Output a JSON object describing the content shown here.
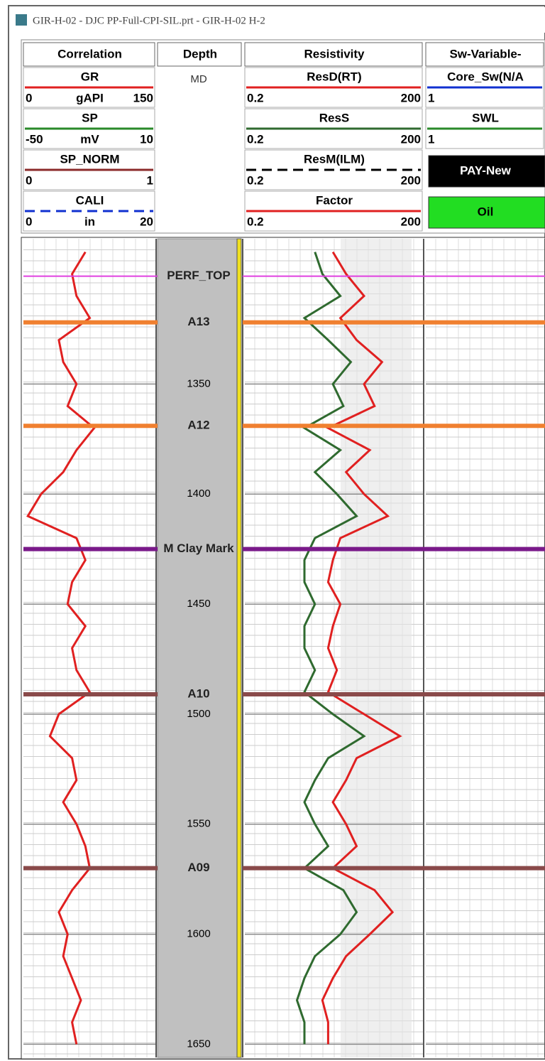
{
  "window": {
    "title": "GIR-H-02 - DJC PP-Full-CPI-SIL.prt - GIR-H-02 H-2"
  },
  "depth": {
    "unit": "MD",
    "ylim": [
      1284,
      1656
    ],
    "ticks": [
      1350,
      1400,
      1450,
      1500,
      1550,
      1600,
      1650
    ],
    "samples": [
      1290,
      1300,
      1310,
      1320,
      1330,
      1340,
      1350,
      1360,
      1370,
      1380,
      1390,
      1400,
      1410,
      1420,
      1430,
      1440,
      1450,
      1460,
      1470,
      1480,
      1490,
      1500,
      1510,
      1520,
      1530,
      1540,
      1550,
      1560,
      1570,
      1580,
      1590,
      1600,
      1610,
      1620,
      1630,
      1640,
      1650
    ]
  },
  "tracks": [
    {
      "title": "Correlation",
      "curves": [
        {
          "name": "GR",
          "color": "#e02020",
          "left": 0,
          "unit": "gAPI",
          "right": 150,
          "log": false,
          "values": [
            70,
            55,
            60,
            75,
            40,
            45,
            60,
            50,
            80,
            60,
            45,
            20,
            5,
            60,
            70,
            55,
            50,
            70,
            55,
            60,
            75,
            40,
            30,
            55,
            60,
            45,
            60,
            70,
            75,
            55,
            40,
            50,
            45,
            55,
            65,
            55,
            60
          ]
        },
        {
          "name": "SP",
          "color": "#2a8a2a",
          "left": -50,
          "unit": "mV",
          "right": 10
        },
        {
          "name": "SP_NORM",
          "color": "#8b2a2a",
          "left": 0,
          "right": 1
        },
        {
          "name": "CALI",
          "color": "#1030d0",
          "dashed": true,
          "left": 0,
          "unit": "in",
          "right": 20
        }
      ]
    },
    {
      "title": "Depth"
    },
    {
      "title": "Resistivity",
      "curves": [
        {
          "name": "ResD(RT)",
          "color": "#e02020",
          "left": 0.2,
          "right": 200,
          "log": true,
          "values": [
            6,
            10,
            20,
            8,
            15,
            40,
            20,
            30,
            5,
            25,
            10,
            20,
            50,
            8,
            6,
            5,
            8,
            6,
            5,
            7,
            5,
            20,
            80,
            15,
            10,
            6,
            10,
            15,
            6,
            30,
            60,
            25,
            10,
            6,
            4,
            5,
            5
          ]
        },
        {
          "name": "ResS",
          "color": "#2f6a2f",
          "left": 0.2,
          "right": 200,
          "log": true,
          "values": [
            3,
            4,
            8,
            2,
            5,
            12,
            6,
            9,
            2,
            8,
            3,
            7,
            15,
            3,
            2,
            2,
            3,
            2,
            2,
            3,
            2,
            6,
            20,
            5,
            3,
            2,
            3,
            5,
            2,
            9,
            15,
            8,
            3,
            2,
            1.5,
            2,
            2
          ]
        },
        {
          "name": "ResM(ILM)",
          "color": "#000000",
          "dashed": true,
          "left": 0.2,
          "right": 200
        },
        {
          "name": "Factor",
          "color": "#e02020",
          "left": 0.2,
          "right": 200
        }
      ]
    },
    {
      "title": "Sw-Variable-",
      "curves": [
        {
          "name": "Core_Sw(N/A",
          "color": "#1030d0",
          "left": 1
        },
        {
          "name": "SWL",
          "color": "#2a8a2a",
          "left": 1
        },
        {
          "name": "PAY-New",
          "box": "#000000"
        },
        {
          "name": "Oil",
          "box": "#22dd22"
        }
      ]
    }
  ],
  "tops": [
    {
      "name": "PERF_TOP",
      "depth": 1301,
      "color": "#e040e0"
    },
    {
      "name": "A13",
      "depth": 1322,
      "color": "#f08030"
    },
    {
      "name": "A12",
      "depth": 1369,
      "color": "#f08030"
    },
    {
      "name": "M Clay Mark",
      "depth": 1425,
      "color": "#7a1a8a"
    },
    {
      "name": "A10",
      "depth": 1491,
      "color": "#8a4a4a"
    },
    {
      "name": "A09",
      "depth": 1570,
      "color": "#8a4a4a"
    }
  ]
}
